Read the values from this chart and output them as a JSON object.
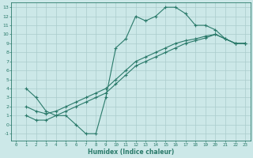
{
  "bg_color": "#cce8e8",
  "grid_color": "#aacccc",
  "line_color": "#2a7a6a",
  "xlabel": "Humidex (Indice chaleur)",
  "xlim": [
    -0.5,
    23.5
  ],
  "ylim": [
    -1.8,
    13.5
  ],
  "xticks": [
    0,
    1,
    2,
    3,
    4,
    5,
    6,
    7,
    8,
    9,
    10,
    11,
    12,
    13,
    14,
    15,
    16,
    17,
    18,
    19,
    20,
    21,
    22,
    23
  ],
  "yticks": [
    -1,
    0,
    1,
    2,
    3,
    4,
    5,
    6,
    7,
    8,
    9,
    10,
    11,
    12,
    13
  ],
  "line1_x": [
    1,
    2,
    3,
    4,
    5,
    6,
    7,
    8,
    9,
    10,
    11,
    12,
    13,
    14,
    15,
    16,
    17,
    18,
    19,
    20,
    21,
    22,
    23
  ],
  "line1_y": [
    4,
    3,
    1.5,
    1,
    1,
    0,
    -1,
    -1,
    3,
    8.5,
    9.5,
    12,
    11.5,
    12,
    13,
    13,
    12.3,
    11,
    11,
    10.5,
    9.5,
    9,
    9
  ],
  "line2_x": [
    1,
    2,
    3,
    4,
    5,
    6,
    7,
    8,
    9,
    10,
    11,
    12,
    13,
    14,
    15,
    16,
    17,
    18,
    19,
    20,
    21,
    22,
    23
  ],
  "line2_y": [
    2,
    1.5,
    1.2,
    1.5,
    2,
    2.5,
    3,
    3.5,
    4,
    5,
    6,
    7,
    7.5,
    8,
    8.5,
    9,
    9.3,
    9.5,
    9.8,
    10,
    9.5,
    9,
    9
  ],
  "line3_x": [
    1,
    2,
    3,
    4,
    5,
    6,
    7,
    8,
    9,
    10,
    11,
    12,
    13,
    14,
    15,
    16,
    17,
    18,
    19,
    20,
    21,
    22,
    23
  ],
  "line3_y": [
    1,
    0.5,
    0.5,
    1,
    1.5,
    2,
    2.5,
    3,
    3.5,
    4.5,
    5.5,
    6.5,
    7,
    7.5,
    8,
    8.5,
    9,
    9.3,
    9.6,
    10,
    9.5,
    9,
    9
  ]
}
